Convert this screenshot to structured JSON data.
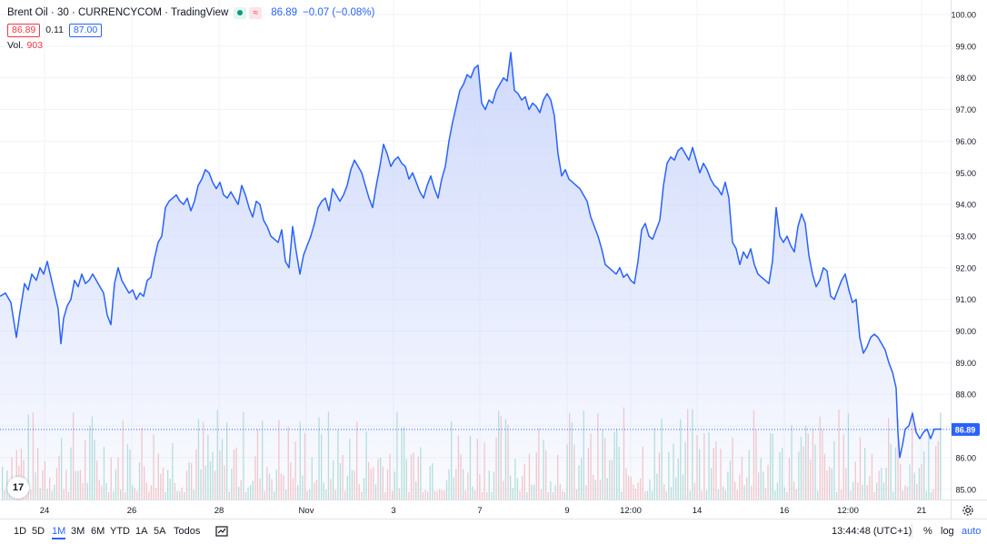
{
  "legend": {
    "title": "Brent Oil · 30 · CURRENCYCOM · TradingView",
    "badge_alt": "≈",
    "last_price": "86.89",
    "change": "−0.07 (−0.08%)",
    "bid": "86.89",
    "spread": "0.11",
    "ask": "87.00",
    "volume_label": "Vol.",
    "volume_value": "903"
  },
  "chart_data": {
    "type": "area",
    "title": "Brent Oil · 30 · CURRENCYCOM · TradingView",
    "ylim": [
      84.7,
      100.2
    ],
    "y_ticks": [
      "85.00",
      "86.00",
      "87.00",
      "88.00",
      "89.00",
      "90.00",
      "91.00",
      "92.00",
      "93.00",
      "94.00",
      "95.00",
      "96.00",
      "97.00",
      "98.00",
      "99.00",
      "100.00"
    ],
    "x_ticks": [
      "24",
      "26",
      "28",
      "Nov",
      "3",
      "7",
      "9",
      "12:00",
      "14",
      "16",
      "12:00",
      "21"
    ],
    "last_price_label": "86.89",
    "last_price_value": 86.89,
    "series": [
      {
        "x_index": [
          0,
          3,
          6,
          9,
          11,
          14,
          18,
          21,
          24,
          27,
          30,
          33,
          36,
          40,
          43,
          46,
          50,
          53,
          56,
          59,
          62,
          65,
          68,
          71,
          75,
          78,
          81,
          84,
          87,
          90,
          93,
          96,
          99,
          102,
          106,
          109,
          112,
          115,
          118,
          121,
          124,
          127,
          131,
          134,
          137,
          140,
          143,
          146,
          150,
          153,
          156,
          159,
          162,
          165,
          168,
          172,
          175,
          179,
          182,
          186,
          189,
          192,
          195,
          198,
          201,
          204,
          207,
          210,
          213,
          217,
          220,
          223,
          226,
          229,
          232,
          236,
          239,
          242,
          245,
          248,
          251,
          254,
          257,
          260,
          264,
          267,
          270,
          273,
          276,
          279,
          282,
          285,
          288,
          291,
          295,
          298,
          301,
          304,
          307,
          310,
          313,
          317,
          320,
          323,
          326,
          329,
          332,
          335,
          338,
          342,
          345,
          348,
          351,
          354,
          357,
          360,
          364,
          367,
          370,
          373,
          376,
          379,
          382,
          385,
          388,
          392,
          395,
          398,
          401,
          404,
          407,
          410,
          413,
          417,
          420,
          423,
          426,
          429,
          432,
          436,
          439,
          442,
          445,
          448,
          451,
          454,
          457,
          460,
          463,
          466,
          469,
          472,
          475,
          478,
          481,
          484,
          487,
          490,
          493,
          496,
          500,
          503,
          506,
          509,
          512,
          515,
          518,
          521,
          524,
          527,
          530,
          533,
          536,
          539,
          542,
          545,
          548,
          552,
          555,
          558,
          561,
          564,
          567,
          570,
          573,
          576,
          579,
          582,
          585,
          588,
          591,
          595,
          598,
          601,
          604,
          607,
          610,
          613,
          616,
          619,
          622,
          625,
          628,
          631,
          635,
          638,
          641,
          644,
          647,
          650,
          653,
          656,
          659,
          662,
          666,
          669,
          672,
          675,
          678,
          681,
          684,
          687,
          690,
          694,
          697,
          700,
          703,
          706,
          709,
          712,
          715,
          718,
          722,
          725,
          728,
          731,
          734,
          737,
          740,
          743,
          746,
          750,
          753,
          756,
          759,
          762,
          765,
          768,
          771,
          774,
          777,
          780,
          783,
          786,
          790,
          793,
          796,
          799,
          802,
          805,
          808,
          811,
          814,
          817,
          820,
          823,
          826,
          829,
          832,
          835,
          838,
          841,
          844,
          847,
          850,
          853,
          856,
          859,
          862,
          865,
          868,
          871,
          874,
          877,
          880,
          883,
          886,
          889,
          892,
          895,
          898,
          901,
          904,
          907,
          910,
          913,
          916,
          919,
          922,
          925,
          928,
          931,
          934,
          937,
          940,
          943,
          946,
          949,
          952,
          955,
          958,
          961,
          964,
          967,
          970,
          973,
          976,
          979,
          982,
          985,
          988,
          991,
          994,
          997,
          1000,
          1003,
          1006,
          1009,
          1012,
          1015,
          1018,
          1021,
          1024,
          1027,
          1030,
          1033,
          1036
        ],
        "y_unused": true
      }
    ],
    "price_points": [
      [
        0,
        91.1
      ],
      [
        6,
        91.2
      ],
      [
        12,
        90.9
      ],
      [
        18,
        89.8
      ],
      [
        22,
        90.6
      ],
      [
        27,
        91.5
      ],
      [
        31,
        91.3
      ],
      [
        35,
        91.8
      ],
      [
        40,
        91.6
      ],
      [
        44,
        92.0
      ],
      [
        48,
        91.8
      ],
      [
        52,
        92.2
      ],
      [
        56,
        91.7
      ],
      [
        60,
        91.2
      ],
      [
        64,
        90.7
      ],
      [
        67,
        89.6
      ],
      [
        70,
        90.4
      ],
      [
        74,
        90.8
      ],
      [
        78,
        91.0
      ],
      [
        82,
        91.6
      ],
      [
        86,
        91.4
      ],
      [
        90,
        91.8
      ],
      [
        94,
        91.5
      ],
      [
        98,
        91.6
      ],
      [
        102,
        91.8
      ],
      [
        106,
        91.6
      ],
      [
        110,
        91.4
      ],
      [
        114,
        91.2
      ],
      [
        118,
        90.5
      ],
      [
        122,
        90.2
      ],
      [
        126,
        91.5
      ],
      [
        130,
        92.0
      ],
      [
        134,
        91.6
      ],
      [
        138,
        91.4
      ],
      [
        142,
        91.2
      ],
      [
        146,
        91.3
      ],
      [
        150,
        91.0
      ],
      [
        154,
        91.2
      ],
      [
        158,
        91.1
      ],
      [
        162,
        91.6
      ],
      [
        166,
        91.7
      ],
      [
        170,
        92.3
      ],
      [
        174,
        92.8
      ],
      [
        178,
        93.0
      ],
      [
        182,
        93.9
      ],
      [
        186,
        94.1
      ],
      [
        190,
        94.2
      ],
      [
        194,
        94.3
      ],
      [
        198,
        94.1
      ],
      [
        202,
        94.0
      ],
      [
        206,
        94.2
      ],
      [
        210,
        93.8
      ],
      [
        214,
        94.1
      ],
      [
        218,
        94.6
      ],
      [
        222,
        94.8
      ],
      [
        226,
        95.1
      ],
      [
        230,
        95.0
      ],
      [
        234,
        94.7
      ],
      [
        238,
        94.5
      ],
      [
        242,
        94.7
      ],
      [
        246,
        94.3
      ],
      [
        250,
        94.2
      ],
      [
        254,
        94.4
      ],
      [
        258,
        94.2
      ],
      [
        262,
        94.0
      ],
      [
        266,
        94.6
      ],
      [
        270,
        94.3
      ],
      [
        274,
        93.9
      ],
      [
        278,
        93.6
      ],
      [
        282,
        94.1
      ],
      [
        286,
        94.0
      ],
      [
        290,
        93.5
      ],
      [
        294,
        93.3
      ],
      [
        298,
        93.0
      ],
      [
        302,
        92.9
      ],
      [
        306,
        92.8
      ],
      [
        310,
        93.2
      ],
      [
        314,
        92.2
      ],
      [
        318,
        92.0
      ],
      [
        322,
        93.3
      ],
      [
        326,
        92.5
      ],
      [
        330,
        91.8
      ],
      [
        334,
        92.4
      ],
      [
        338,
        92.7
      ],
      [
        342,
        93.0
      ],
      [
        346,
        93.4
      ],
      [
        350,
        93.9
      ],
      [
        354,
        94.1
      ],
      [
        358,
        94.2
      ],
      [
        362,
        93.8
      ],
      [
        366,
        94.5
      ],
      [
        370,
        94.3
      ],
      [
        374,
        94.1
      ],
      [
        378,
        94.3
      ],
      [
        382,
        94.6
      ],
      [
        386,
        95.1
      ],
      [
        390,
        95.4
      ],
      [
        394,
        95.2
      ],
      [
        398,
        95.0
      ],
      [
        402,
        94.6
      ],
      [
        406,
        94.2
      ],
      [
        410,
        93.9
      ],
      [
        414,
        94.6
      ],
      [
        418,
        95.2
      ],
      [
        422,
        95.9
      ],
      [
        426,
        95.6
      ],
      [
        430,
        95.2
      ],
      [
        434,
        95.4
      ],
      [
        438,
        95.5
      ],
      [
        442,
        95.3
      ],
      [
        446,
        95.2
      ],
      [
        450,
        94.8
      ],
      [
        454,
        95.0
      ],
      [
        458,
        94.7
      ],
      [
        462,
        94.4
      ],
      [
        466,
        94.2
      ],
      [
        470,
        94.6
      ],
      [
        474,
        94.9
      ],
      [
        478,
        94.5
      ],
      [
        482,
        94.2
      ],
      [
        486,
        94.8
      ],
      [
        490,
        95.2
      ],
      [
        494,
        96.0
      ],
      [
        498,
        96.6
      ],
      [
        502,
        97.1
      ],
      [
        506,
        97.6
      ],
      [
        510,
        97.8
      ],
      [
        514,
        98.1
      ],
      [
        518,
        98.0
      ],
      [
        522,
        98.3
      ],
      [
        526,
        98.4
      ],
      [
        530,
        97.2
      ],
      [
        534,
        97.0
      ],
      [
        538,
        97.3
      ],
      [
        542,
        97.2
      ],
      [
        546,
        97.6
      ],
      [
        550,
        97.8
      ],
      [
        554,
        98.0
      ],
      [
        558,
        97.9
      ],
      [
        562,
        98.8
      ],
      [
        566,
        97.6
      ],
      [
        570,
        97.5
      ],
      [
        574,
        97.3
      ],
      [
        578,
        97.4
      ],
      [
        582,
        97.0
      ],
      [
        586,
        97.2
      ],
      [
        590,
        97.1
      ],
      [
        594,
        96.9
      ],
      [
        598,
        97.3
      ],
      [
        602,
        97.5
      ],
      [
        606,
        97.3
      ],
      [
        610,
        96.8
      ],
      [
        614,
        95.6
      ],
      [
        618,
        94.9
      ],
      [
        622,
        95.1
      ],
      [
        626,
        94.8
      ],
      [
        630,
        94.7
      ],
      [
        634,
        94.6
      ],
      [
        638,
        94.5
      ],
      [
        642,
        94.3
      ],
      [
        646,
        94.1
      ],
      [
        650,
        93.6
      ],
      [
        654,
        93.3
      ],
      [
        658,
        93.0
      ],
      [
        662,
        92.6
      ],
      [
        666,
        92.1
      ],
      [
        670,
        92.0
      ],
      [
        674,
        91.9
      ],
      [
        678,
        91.8
      ],
      [
        682,
        92.0
      ],
      [
        686,
        91.7
      ],
      [
        690,
        91.8
      ],
      [
        694,
        91.6
      ],
      [
        698,
        91.5
      ],
      [
        702,
        92.2
      ],
      [
        706,
        93.2
      ],
      [
        710,
        93.4
      ],
      [
        714,
        93.0
      ],
      [
        718,
        92.9
      ],
      [
        722,
        93.2
      ],
      [
        726,
        93.5
      ],
      [
        730,
        94.6
      ],
      [
        734,
        95.3
      ],
      [
        738,
        95.5
      ],
      [
        742,
        95.4
      ],
      [
        746,
        95.7
      ],
      [
        750,
        95.8
      ],
      [
        754,
        95.6
      ],
      [
        758,
        95.4
      ],
      [
        762,
        95.8
      ],
      [
        766,
        95.4
      ],
      [
        770,
        95.0
      ],
      [
        774,
        95.3
      ],
      [
        778,
        95.1
      ],
      [
        782,
        94.8
      ],
      [
        786,
        94.6
      ],
      [
        790,
        94.5
      ],
      [
        794,
        94.3
      ],
      [
        798,
        94.7
      ],
      [
        802,
        94.2
      ],
      [
        806,
        92.8
      ],
      [
        810,
        92.6
      ],
      [
        814,
        92.1
      ],
      [
        818,
        92.5
      ],
      [
        822,
        92.3
      ],
      [
        826,
        92.6
      ],
      [
        830,
        92.1
      ],
      [
        834,
        91.8
      ],
      [
        838,
        91.7
      ],
      [
        842,
        91.6
      ],
      [
        846,
        91.5
      ],
      [
        850,
        92.2
      ],
      [
        854,
        93.9
      ],
      [
        858,
        93.0
      ],
      [
        862,
        92.8
      ],
      [
        866,
        93.0
      ],
      [
        870,
        92.7
      ],
      [
        874,
        92.5
      ],
      [
        878,
        93.3
      ],
      [
        882,
        93.7
      ],
      [
        886,
        93.4
      ],
      [
        890,
        92.4
      ],
      [
        894,
        91.8
      ],
      [
        898,
        91.4
      ],
      [
        902,
        91.6
      ],
      [
        906,
        92.0
      ],
      [
        910,
        91.9
      ],
      [
        914,
        91.1
      ],
      [
        918,
        91.0
      ],
      [
        922,
        91.3
      ],
      [
        926,
        91.6
      ],
      [
        930,
        91.8
      ],
      [
        934,
        91.3
      ],
      [
        938,
        90.9
      ],
      [
        942,
        91.0
      ],
      [
        946,
        89.8
      ],
      [
        950,
        89.3
      ],
      [
        954,
        89.5
      ],
      [
        958,
        89.8
      ],
      [
        962,
        89.9
      ],
      [
        966,
        89.8
      ],
      [
        970,
        89.6
      ],
      [
        974,
        89.4
      ],
      [
        978,
        89.0
      ],
      [
        982,
        88.7
      ],
      [
        986,
        88.2
      ],
      [
        988,
        86.8
      ],
      [
        990,
        86.0
      ],
      [
        993,
        86.4
      ],
      [
        996,
        86.9
      ],
      [
        1000,
        87.0
      ],
      [
        1004,
        87.4
      ],
      [
        1008,
        86.8
      ],
      [
        1012,
        86.6
      ],
      [
        1016,
        86.8
      ],
      [
        1020,
        86.9
      ],
      [
        1024,
        86.6
      ],
      [
        1028,
        86.9
      ],
      [
        1032,
        86.9
      ],
      [
        1036,
        86.9
      ]
    ],
    "grid": true,
    "legend_position": "top-left"
  },
  "toolbar": {
    "timeframes": [
      "1D",
      "5D",
      "1M",
      "3M",
      "6M",
      "YTD",
      "1A",
      "5A",
      "Todos"
    ],
    "active_timeframe": "1M",
    "clock": "13:44:48 (UTC+1)",
    "percent_label": "%",
    "log_label": "log",
    "auto_label": "auto"
  },
  "colors": {
    "line": "#2962ff",
    "area_top": "#c7d3fb",
    "volume_up": "#9fd7cc",
    "volume_down": "#f5b5b6",
    "accent": "#2962ff",
    "down": "#f23645",
    "up": "#089981"
  },
  "icons": {
    "compare": "compare-icon",
    "settings": "gear-icon",
    "logo": "tradingview-logo-icon"
  }
}
